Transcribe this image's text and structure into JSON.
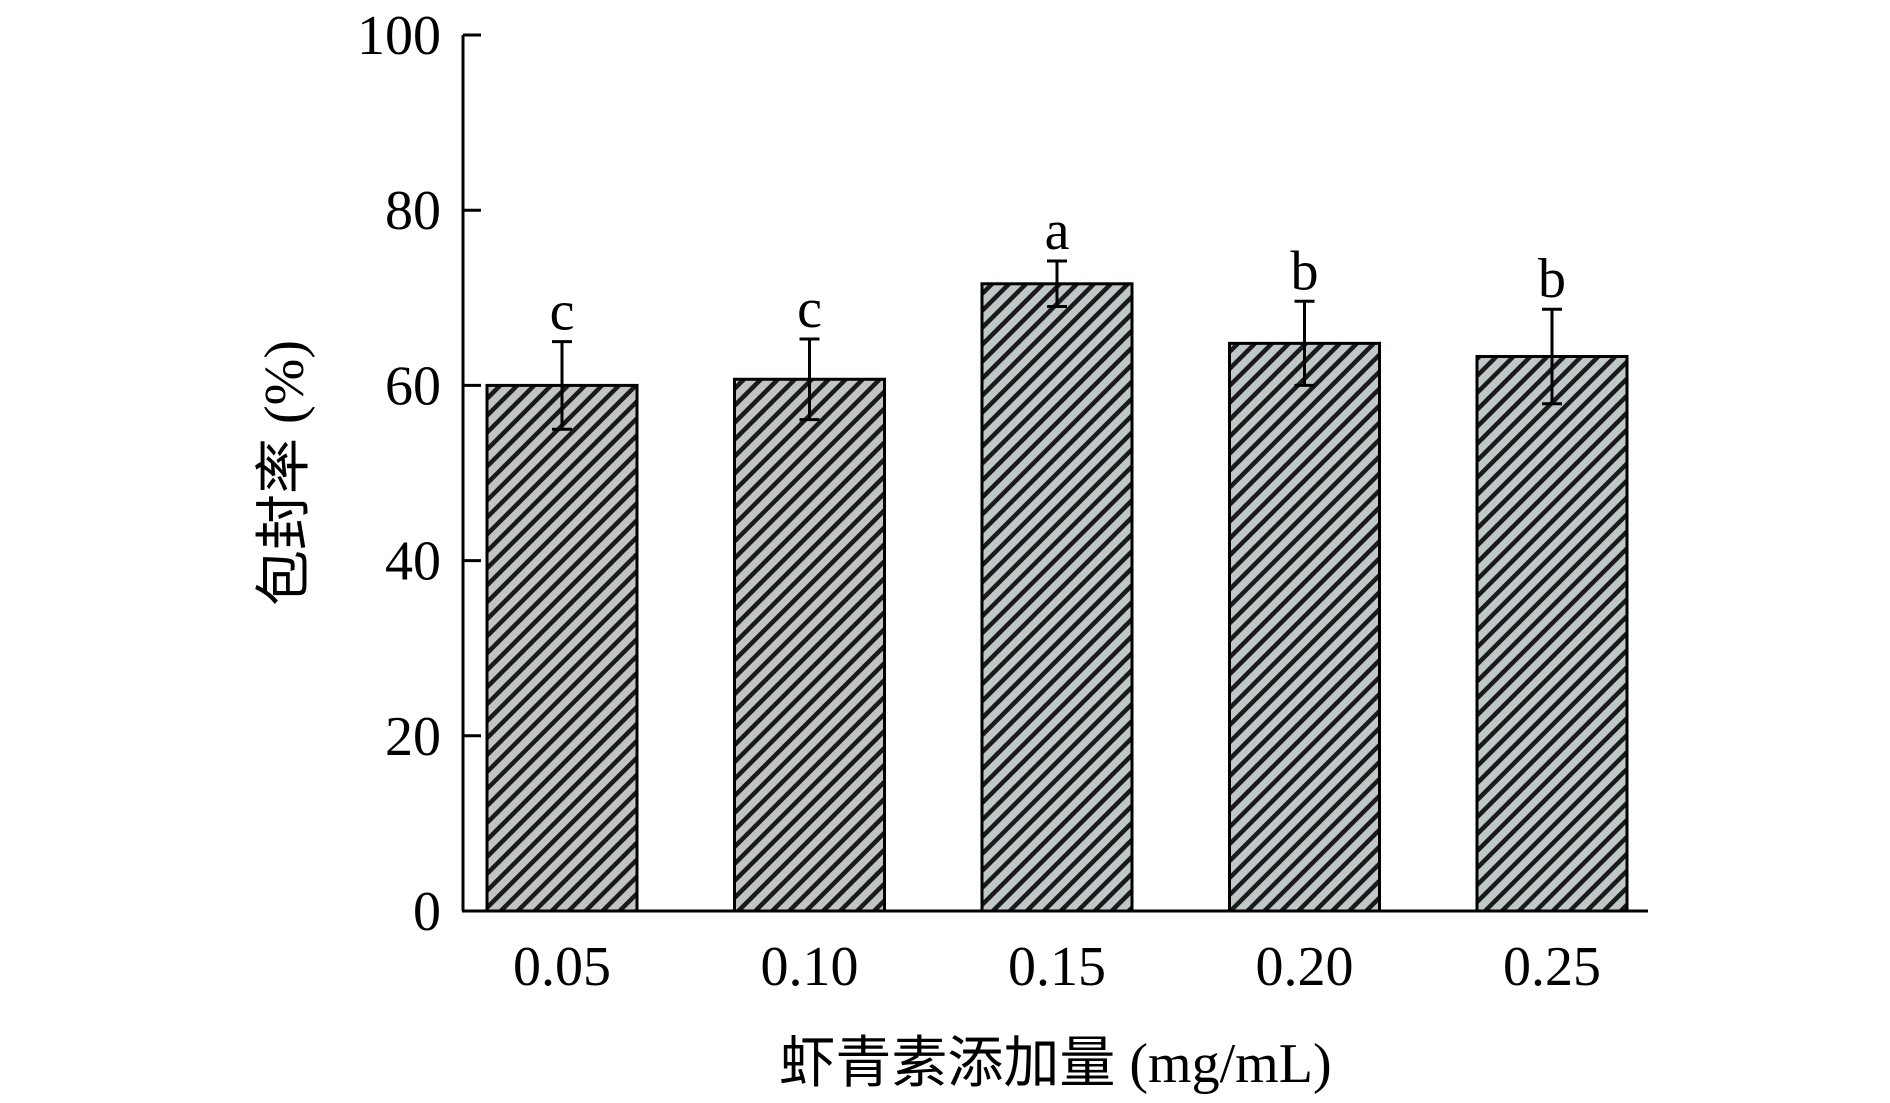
{
  "chart_data": {
    "type": "bar",
    "categories": [
      "0.05",
      "0.10",
      "0.15",
      "0.20",
      "0.25"
    ],
    "values": [
      60.0,
      60.7,
      71.6,
      64.8,
      63.3
    ],
    "errors": [
      5.0,
      4.6,
      2.6,
      4.8,
      5.4
    ],
    "significance_labels": [
      "c",
      "c",
      "a",
      "b",
      "b"
    ],
    "xlabel": "虾青素添加量 (mg/mL)",
    "ylabel": "包封率 (%)",
    "ylim": [
      0,
      100
    ],
    "yticks": [
      0,
      20,
      40,
      60,
      80,
      100
    ],
    "bar_fill": "#c0c4c4",
    "bar_hatch": "#1a1a1a",
    "bar_hatch_alt": "#a6b0b0"
  }
}
